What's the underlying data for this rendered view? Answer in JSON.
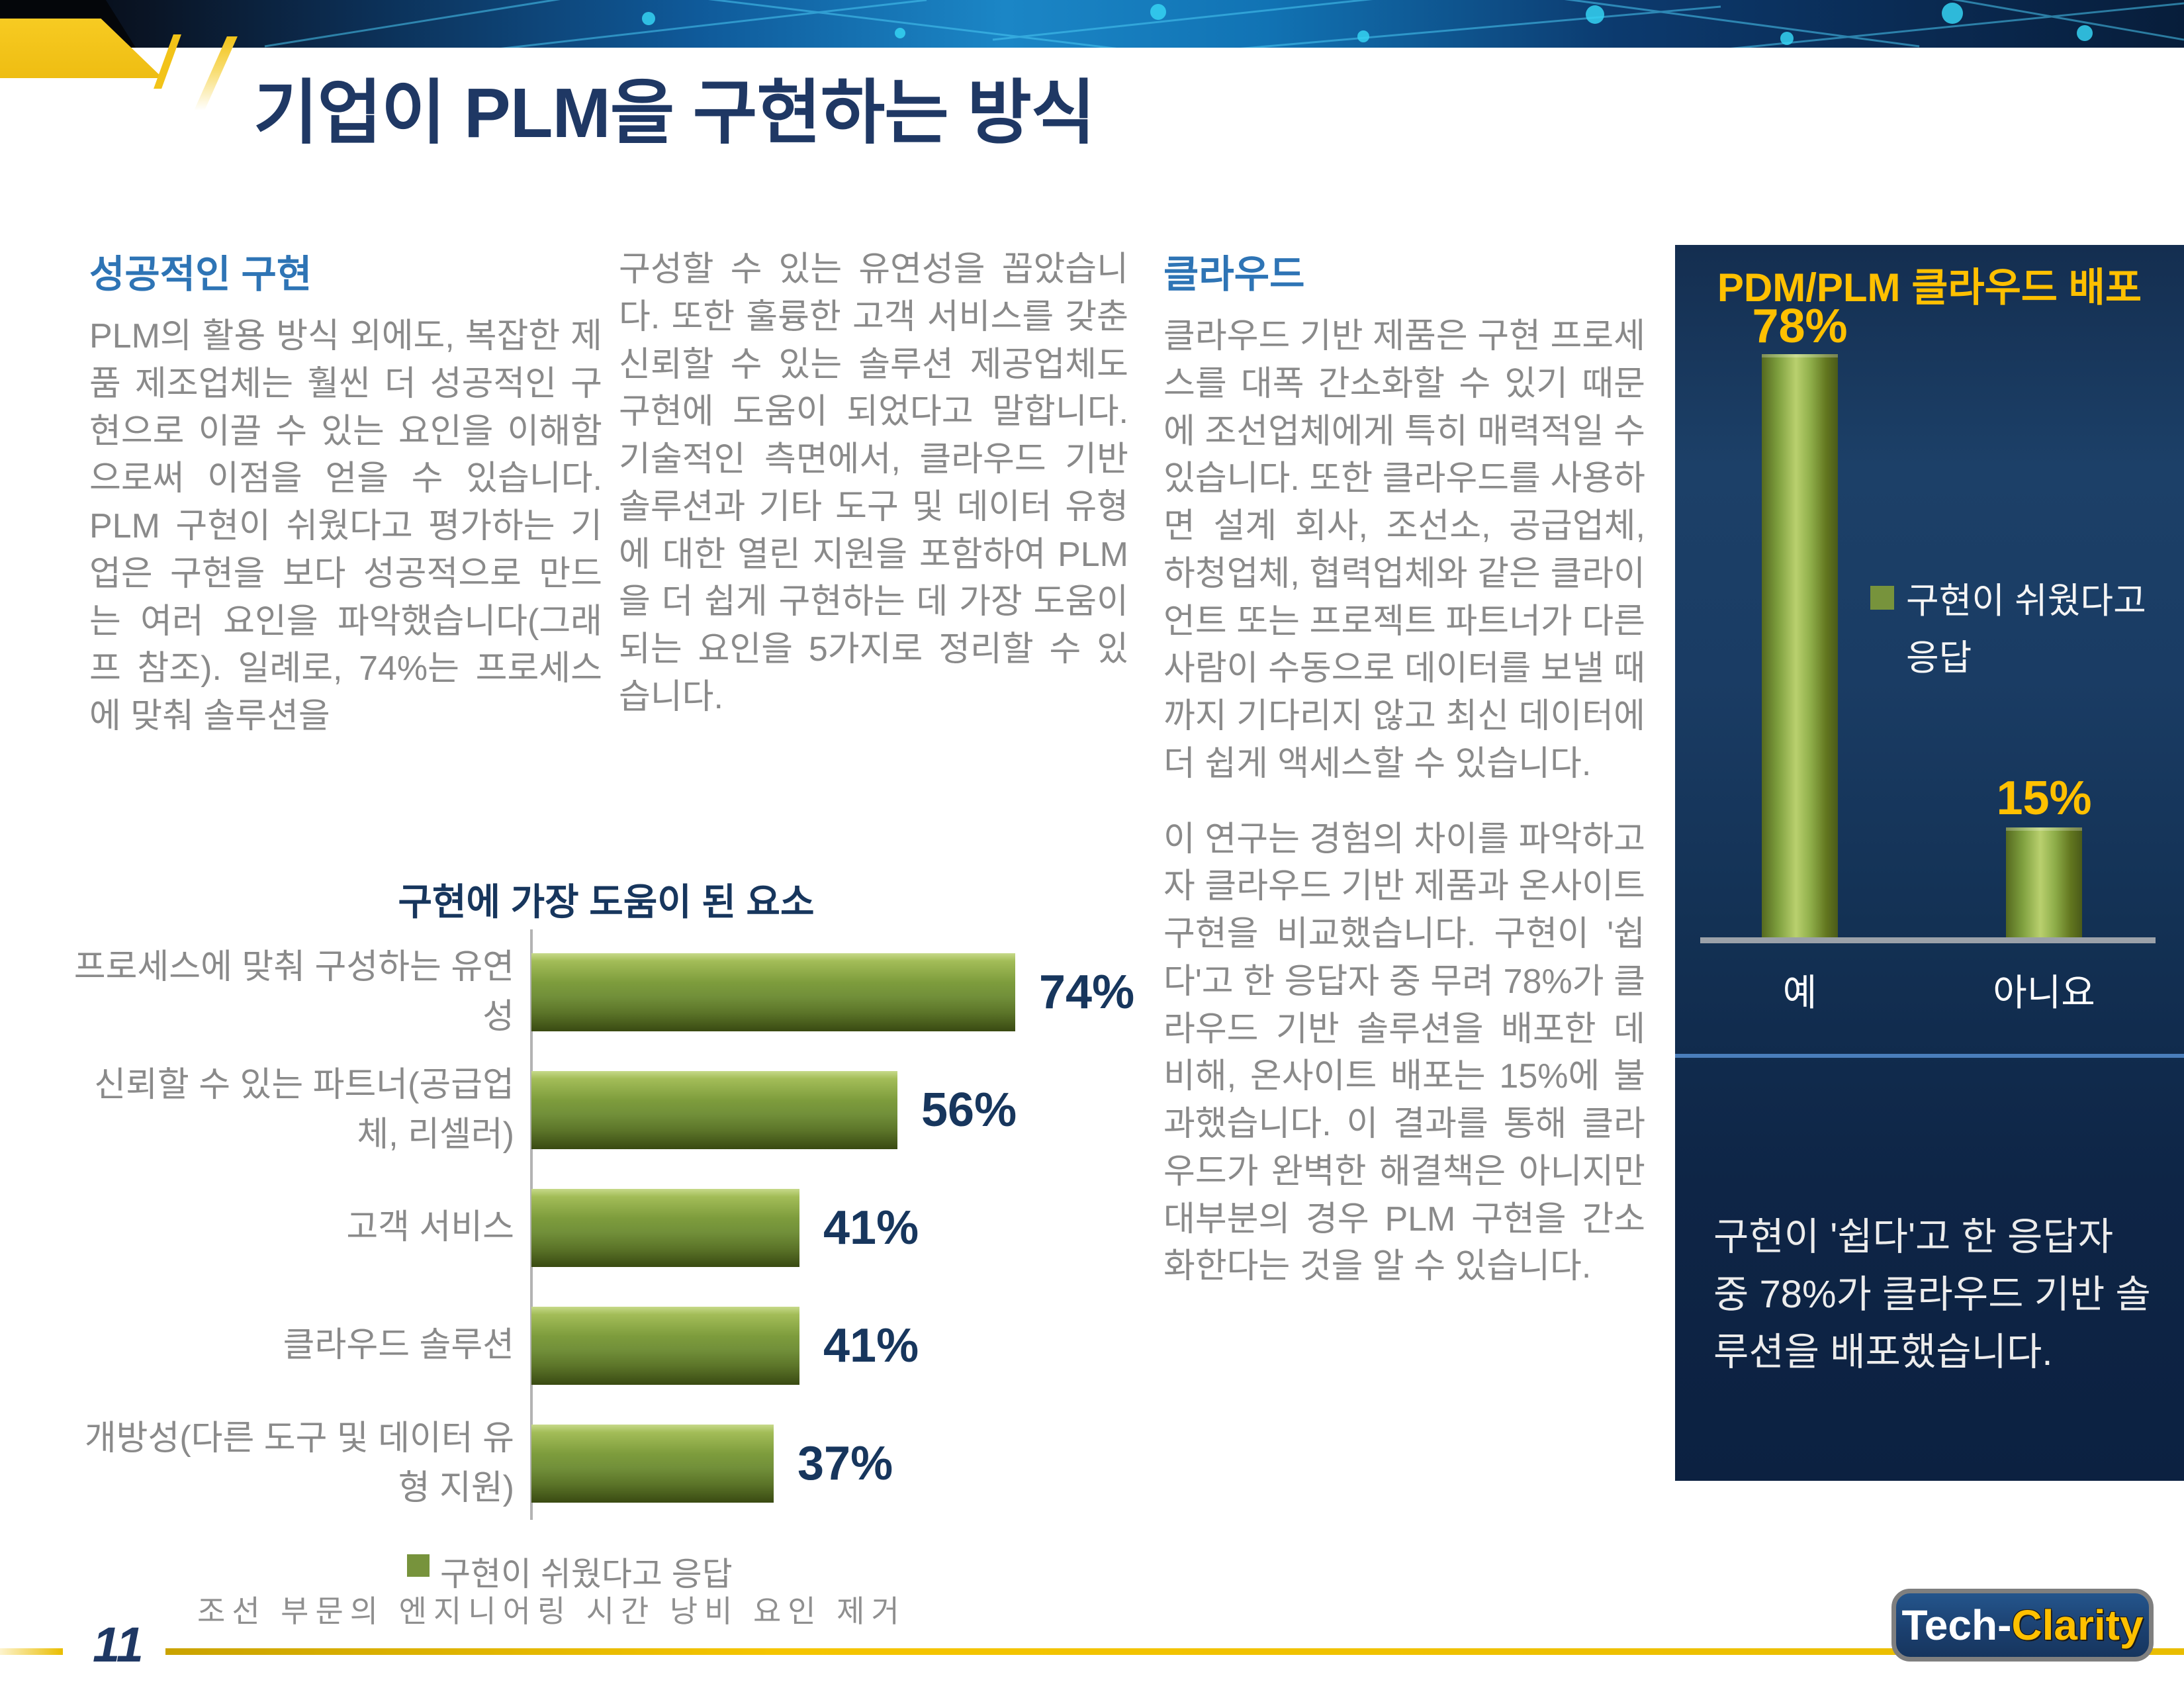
{
  "page_title": "기업이 PLM을 구현하는 방식",
  "columns": {
    "col1": {
      "heading": "성공적인 구현",
      "body": "PLM의 활용 방식 외에도, 복잡한 제품 제조업체는 훨씬 더 성공적인 구현으로 이끌 수 있는 요인을 이해함으로써 이점을 얻을 수 있습니다. PLM 구현이 쉬웠다고 평가하는 기업은 구현을 보다 성공적으로 만드는 여러 요인을 파악했습니다(그래프 참조). 일례로, 74%는 프로세스에 맞춰 솔루션을"
    },
    "col2": {
      "body": "구성할 수 있는 유연성을 꼽았습니다. 또한 훌륭한 고객 서비스를 갖춘 신뢰할 수 있는 솔루션 제공업체도 구현에 도움이 되었다고 말합니다. 기술적인 측면에서, 클라우드 기반 솔루션과 기타 도구 및 데이터 유형에 대한 열린 지원을 포함하여 PLM을 더 쉽게 구현하는 데 가장 도움이 되는 요인을 5가지로 정리할 수 있습니다."
    },
    "col3": {
      "heading": "클라우드",
      "para1": "클라우드 기반 제품은 구현 프로세스를 대폭 간소화할 수 있기 때문에 조선업체에게 특히 매력적일 수 있습니다. 또한 클라우드를 사용하면 설계 회사, 조선소, 공급업체, 하청업체, 협력업체와 같은 클라이언트 또는 프로젝트 파트너가 다른 사람이 수동으로 데이터를 보낼 때까지 기다리지 않고 최신 데이터에 더 쉽게 액세스할 수 있습니다.",
      "para2": "이 연구는 경험의 차이를 파악하고자 클라우드 기반 제품과 온사이트 구현을 비교했습니다. 구현이 '쉽다'고 한 응답자 중 무려 78%가 클라우드 기반 솔루션을 배포한 데 비해, 온사이트 배포는 15%에 불과했습니다. 이 결과를 통해 클라우드가 완벽한 해결책은 아니지만 대부분의 경우 PLM 구현을 간소화한다는 것을 알 수 있습니다."
    }
  },
  "chart_data": [
    {
      "type": "bar",
      "orientation": "horizontal",
      "title": "구현에 가장 도움이 된 요소",
      "categories": [
        "프로세스에 맞춰 구성하는 유연성",
        "신뢰할 수 있는 파트너(공급업체, 리셀러)",
        "고객 서비스",
        "클라우드 솔루션",
        "개방성(다른 도구 및 데이터 유형 지원)"
      ],
      "values": [
        74,
        56,
        41,
        41,
        37
      ],
      "value_labels": [
        "74%",
        "56%",
        "41%",
        "41%",
        "37%"
      ],
      "xlim": [
        0,
        100
      ],
      "grid": false,
      "legend": "구현이 쉬웠다고 응답",
      "legend_position": "bottom",
      "bar_color": "#7d9c3c",
      "value_label_color": "#17365d"
    },
    {
      "type": "bar",
      "orientation": "vertical",
      "title": "PDM/PLM 클라우드 배포",
      "categories": [
        "예",
        "아니요"
      ],
      "values": [
        78,
        15
      ],
      "value_labels": [
        "78%",
        "15%"
      ],
      "ylim": [
        0,
        100
      ],
      "grid": false,
      "legend": "구현이 쉬웠다고 응답",
      "legend_position": "right",
      "bar_color": "#7d9c3c",
      "value_label_color": "#ffc000",
      "background_color": "#13305a"
    }
  ],
  "cloud_panel": {
    "callout": "구현이 '쉽다'고 한 응답자 중 78%가 클라우드 기반 솔루션을 배포했습니다."
  },
  "footer": {
    "page_number": "11",
    "note": "조선 부문의 엔지니어링 시간 낭비 요인 제거"
  },
  "logo": {
    "part1": "Tech-",
    "part2": "Clarity"
  },
  "colors": {
    "title_navy": "#1f3864",
    "heading_blue": "#2e74b5",
    "body_gray": "#8a8a8a",
    "accent_gold": "#ffc000",
    "bar_green": "#7d9c3c",
    "legend_green": "#77933c",
    "panel_navy": "#13305a",
    "divider_blue": "#4a7ebb"
  }
}
